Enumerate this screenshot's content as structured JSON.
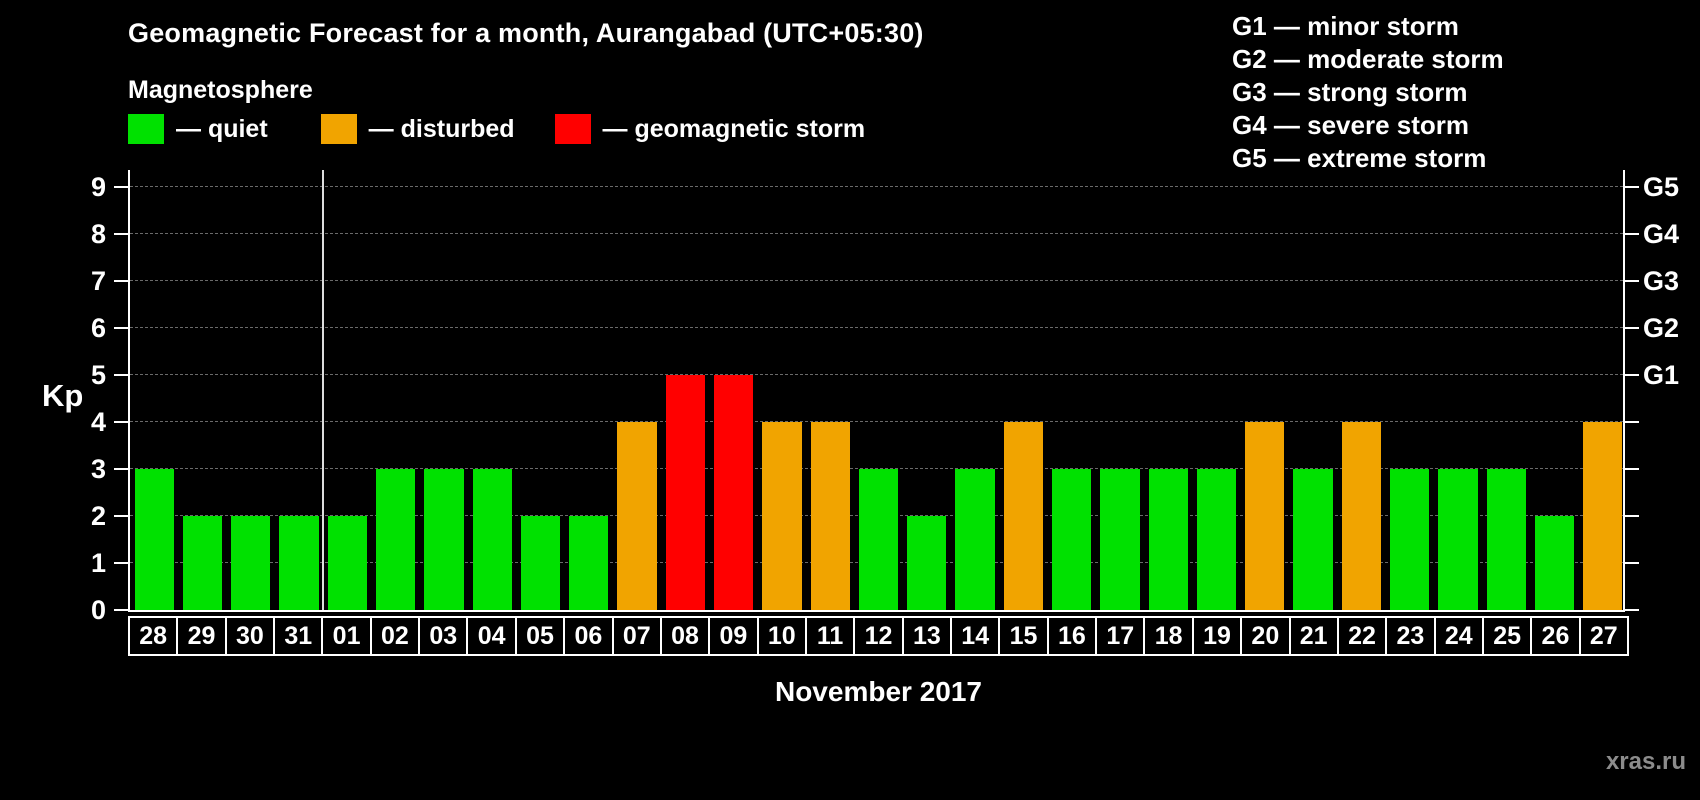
{
  "title": "Geomagnetic Forecast for a month, Aurangabad (UTC+05:30)",
  "legend": {
    "heading": "Magnetosphere",
    "items": [
      {
        "label": "— quiet",
        "status": "quiet",
        "color": "#00e100"
      },
      {
        "label": "— disturbed",
        "status": "disturbed",
        "color": "#f1a400"
      },
      {
        "label": "— geomagnetic storm",
        "status": "storm",
        "color": "#ff0000"
      }
    ]
  },
  "g_legend": [
    "G1 — minor storm",
    "G2 — moderate storm",
    "G3 — strong storm",
    "G4 — severe storm",
    "G5 — extreme storm"
  ],
  "chart_data": {
    "type": "bar",
    "title": "Geomagnetic Forecast for a month, Aurangabad (UTC+05:30)",
    "ylabel": "Kp",
    "xlabel": "November 2017",
    "ylim": [
      0,
      9
    ],
    "yticks": [
      0,
      1,
      2,
      3,
      4,
      5,
      6,
      7,
      8,
      9
    ],
    "grid": "dashed-horizontal",
    "legend_position": "top",
    "right_axis": [
      {
        "kp": 5,
        "label": "G1"
      },
      {
        "kp": 6,
        "label": "G2"
      },
      {
        "kp": 7,
        "label": "G3"
      },
      {
        "kp": 8,
        "label": "G4"
      },
      {
        "kp": 9,
        "label": "G5"
      }
    ],
    "separator_index": 4,
    "status_colors": {
      "quiet": "#00e100",
      "disturbed": "#f1a400",
      "storm": "#ff0000"
    },
    "days": [
      {
        "day": "28",
        "kp": 3,
        "status": "quiet"
      },
      {
        "day": "29",
        "kp": 2,
        "status": "quiet"
      },
      {
        "day": "30",
        "kp": 2,
        "status": "quiet"
      },
      {
        "day": "31",
        "kp": 2,
        "status": "quiet"
      },
      {
        "day": "01",
        "kp": 2,
        "status": "quiet"
      },
      {
        "day": "02",
        "kp": 3,
        "status": "quiet"
      },
      {
        "day": "03",
        "kp": 3,
        "status": "quiet"
      },
      {
        "day": "04",
        "kp": 3,
        "status": "quiet"
      },
      {
        "day": "05",
        "kp": 2,
        "status": "quiet"
      },
      {
        "day": "06",
        "kp": 2,
        "status": "quiet"
      },
      {
        "day": "07",
        "kp": 4,
        "status": "disturbed"
      },
      {
        "day": "08",
        "kp": 5,
        "status": "storm"
      },
      {
        "day": "09",
        "kp": 5,
        "status": "storm"
      },
      {
        "day": "10",
        "kp": 4,
        "status": "disturbed"
      },
      {
        "day": "11",
        "kp": 4,
        "status": "disturbed"
      },
      {
        "day": "12",
        "kp": 3,
        "status": "quiet"
      },
      {
        "day": "13",
        "kp": 2,
        "status": "quiet"
      },
      {
        "day": "14",
        "kp": 3,
        "status": "quiet"
      },
      {
        "day": "15",
        "kp": 4,
        "status": "disturbed"
      },
      {
        "day": "16",
        "kp": 3,
        "status": "quiet"
      },
      {
        "day": "17",
        "kp": 3,
        "status": "quiet"
      },
      {
        "day": "18",
        "kp": 3,
        "status": "quiet"
      },
      {
        "day": "19",
        "kp": 3,
        "status": "quiet"
      },
      {
        "day": "20",
        "kp": 4,
        "status": "disturbed"
      },
      {
        "day": "21",
        "kp": 3,
        "status": "quiet"
      },
      {
        "day": "22",
        "kp": 4,
        "status": "disturbed"
      },
      {
        "day": "23",
        "kp": 3,
        "status": "quiet"
      },
      {
        "day": "24",
        "kp": 3,
        "status": "quiet"
      },
      {
        "day": "25",
        "kp": 3,
        "status": "quiet"
      },
      {
        "day": "26",
        "kp": 2,
        "status": "quiet"
      },
      {
        "day": "27",
        "kp": 4,
        "status": "disturbed"
      }
    ]
  },
  "watermark": "xras.ru"
}
